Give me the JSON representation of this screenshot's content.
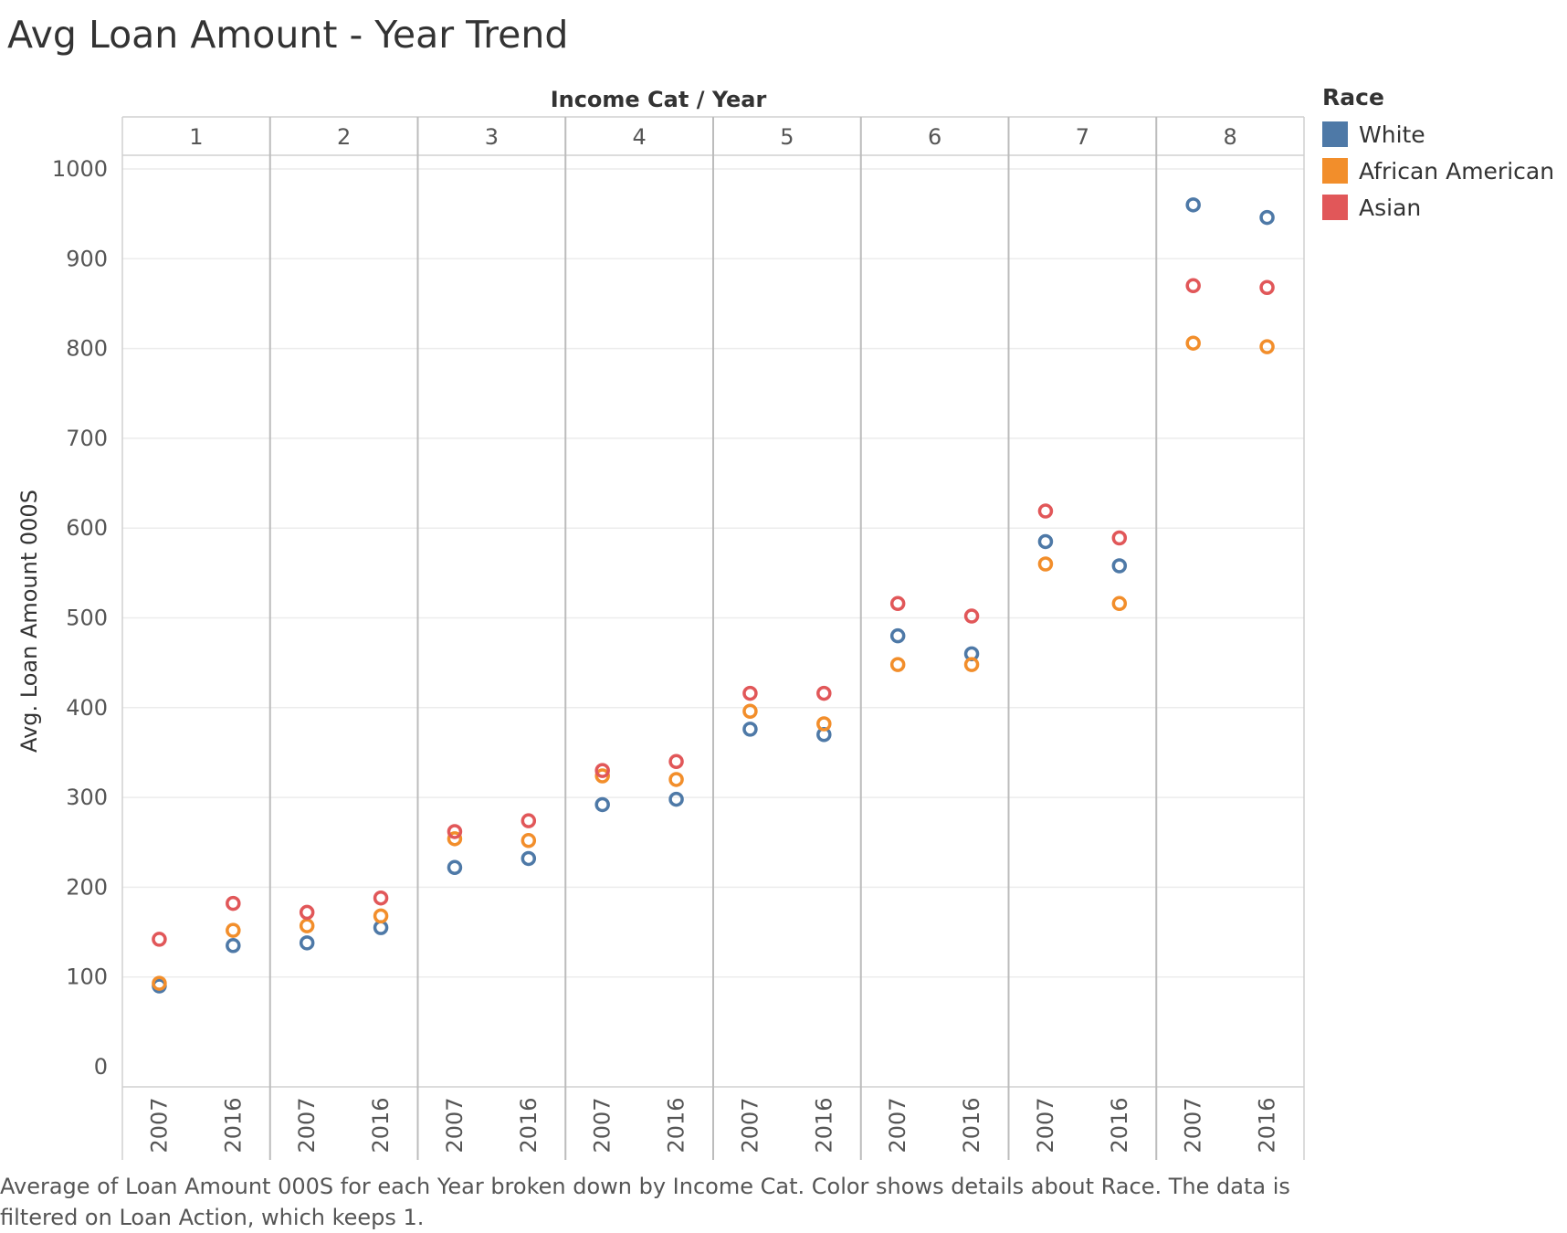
{
  "title": "Avg Loan Amount - Year Trend",
  "caption": "Average of Loan Amount 000S for each Year broken down by Income Cat.  Color shows details about Race. The data is filtered on Loan Action, which keeps 1.",
  "legend": {
    "title": "Race",
    "items": [
      {
        "label": "White",
        "color": "#4e79a7"
      },
      {
        "label": "African American",
        "color": "#f28e2b"
      },
      {
        "label": "Asian",
        "color": "#e15759"
      }
    ]
  },
  "chart_data": {
    "type": "scatter",
    "title": "Avg Loan Amount - Year Trend",
    "xlabel": "Income Cat / Year",
    "ylabel": "Avg. Loan Amount 000S",
    "ylim": [
      0,
      1000
    ],
    "yticks": [
      0,
      100,
      200,
      300,
      400,
      500,
      600,
      700,
      800,
      900,
      1000
    ],
    "grid": true,
    "legend_position": "right",
    "panels": [
      "1",
      "2",
      "3",
      "4",
      "5",
      "6",
      "7",
      "8"
    ],
    "years": [
      "2007",
      "2016"
    ],
    "series": [
      {
        "name": "White",
        "color": "#4e79a7",
        "values": [
          [
            90,
            135
          ],
          [
            138,
            155
          ],
          [
            222,
            232
          ],
          [
            292,
            298
          ],
          [
            376,
            370
          ],
          [
            480,
            460
          ],
          [
            585,
            558
          ],
          [
            960,
            946
          ]
        ]
      },
      {
        "name": "African American",
        "color": "#f28e2b",
        "values": [
          [
            93,
            152
          ],
          [
            157,
            168
          ],
          [
            254,
            252
          ],
          [
            324,
            320
          ],
          [
            396,
            382
          ],
          [
            448,
            448
          ],
          [
            560,
            516
          ],
          [
            806,
            802
          ]
        ]
      },
      {
        "name": "Asian",
        "color": "#e15759",
        "values": [
          [
            142,
            182
          ],
          [
            172,
            188
          ],
          [
            262,
            274
          ],
          [
            330,
            340
          ],
          [
            416,
            416
          ],
          [
            516,
            502
          ],
          [
            619,
            589
          ],
          [
            870,
            868
          ]
        ]
      }
    ]
  }
}
